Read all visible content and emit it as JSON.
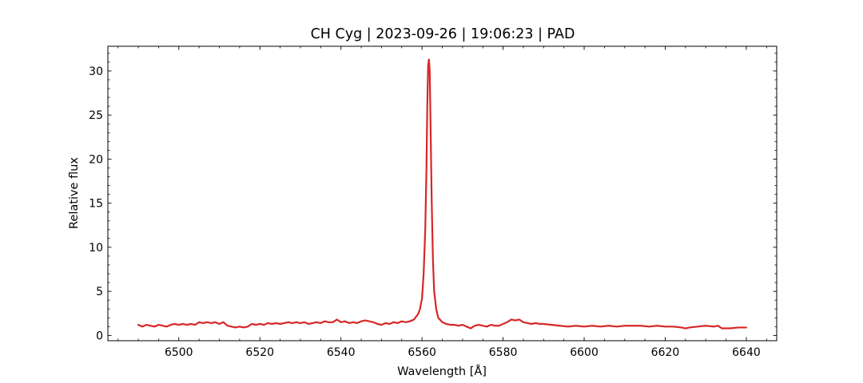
{
  "chart_data": {
    "type": "line",
    "title": "CH Cyg | 2023-09-26 | 19:06:23 | PAD",
    "xlabel": "Wavelength [Å]",
    "ylabel": "Relative flux",
    "xlim": [
      6482.5,
      6647.5
    ],
    "ylim": [
      -0.6,
      32.8
    ],
    "xticks": [
      6500,
      6520,
      6540,
      6560,
      6580,
      6600,
      6620,
      6640
    ],
    "yticks": [
      0,
      5,
      10,
      15,
      20,
      25,
      30
    ],
    "xminor_step": 5,
    "yminor_step": 1,
    "line_color": "#d62728",
    "series": [
      {
        "x": [
          6490,
          6491,
          6492,
          6493,
          6494,
          6495,
          6496,
          6497,
          6498,
          6499,
          6500,
          6501,
          6502,
          6503,
          6504,
          6505,
          6506,
          6507,
          6508,
          6509,
          6510,
          6511,
          6512,
          6513,
          6514,
          6515,
          6516,
          6517,
          6518,
          6519,
          6520,
          6521,
          6522,
          6523,
          6524,
          6525,
          6526,
          6527,
          6528,
          6529,
          6530,
          6531,
          6532,
          6533,
          6534,
          6535,
          6536,
          6537,
          6538,
          6539,
          6540,
          6541,
          6542,
          6543,
          6544,
          6545,
          6546,
          6547,
          6548,
          6549,
          6550,
          6551,
          6552,
          6553,
          6554,
          6555,
          6556,
          6557,
          6558,
          6559,
          6559.5,
          6560,
          6560.4,
          6560.8,
          6561.1,
          6561.3,
          6561.5,
          6561.7,
          6561.9,
          6562.1,
          6562.4,
          6562.7,
          6563,
          6563.5,
          6564,
          6565,
          6566,
          6567,
          6568,
          6569,
          6570,
          6571,
          6572,
          6573,
          6574,
          6575,
          6576,
          6577,
          6578,
          6579,
          6580,
          6581,
          6582,
          6583,
          6584,
          6585,
          6586,
          6587,
          6588,
          6589,
          6590,
          6592,
          6594,
          6596,
          6598,
          6600,
          6602,
          6604,
          6606,
          6608,
          6610,
          6612,
          6614,
          6616,
          6618,
          6620,
          6622,
          6624,
          6625,
          6626,
          6628,
          6630,
          6632,
          6633,
          6634,
          6636,
          6638,
          6640
        ],
        "y": [
          1.2,
          1.0,
          1.2,
          1.1,
          1.0,
          1.2,
          1.1,
          1.0,
          1.2,
          1.3,
          1.2,
          1.3,
          1.2,
          1.3,
          1.2,
          1.5,
          1.4,
          1.5,
          1.4,
          1.5,
          1.3,
          1.5,
          1.1,
          1.0,
          0.9,
          1.0,
          0.9,
          1.0,
          1.3,
          1.2,
          1.3,
          1.2,
          1.4,
          1.3,
          1.4,
          1.3,
          1.4,
          1.5,
          1.4,
          1.5,
          1.4,
          1.5,
          1.3,
          1.4,
          1.5,
          1.4,
          1.6,
          1.5,
          1.5,
          1.8,
          1.5,
          1.6,
          1.4,
          1.5,
          1.4,
          1.6,
          1.7,
          1.6,
          1.5,
          1.3,
          1.2,
          1.4,
          1.3,
          1.5,
          1.4,
          1.6,
          1.5,
          1.6,
          1.8,
          2.4,
          3.0,
          4.2,
          7.0,
          12.0,
          19.0,
          26.0,
          30.5,
          31.3,
          30.0,
          24.0,
          15.0,
          8.5,
          5.0,
          3.0,
          2.0,
          1.5,
          1.3,
          1.2,
          1.2,
          1.1,
          1.2,
          1.0,
          0.8,
          1.1,
          1.2,
          1.1,
          1.0,
          1.2,
          1.1,
          1.1,
          1.3,
          1.5,
          1.8,
          1.7,
          1.8,
          1.5,
          1.4,
          1.3,
          1.4,
          1.3,
          1.3,
          1.2,
          1.1,
          1.0,
          1.1,
          1.0,
          1.1,
          1.0,
          1.1,
          1.0,
          1.1,
          1.1,
          1.1,
          1.0,
          1.1,
          1.0,
          1.0,
          0.9,
          0.8,
          0.9,
          1.0,
          1.1,
          1.0,
          1.1,
          0.8,
          0.8,
          0.9,
          0.9
        ]
      }
    ]
  }
}
